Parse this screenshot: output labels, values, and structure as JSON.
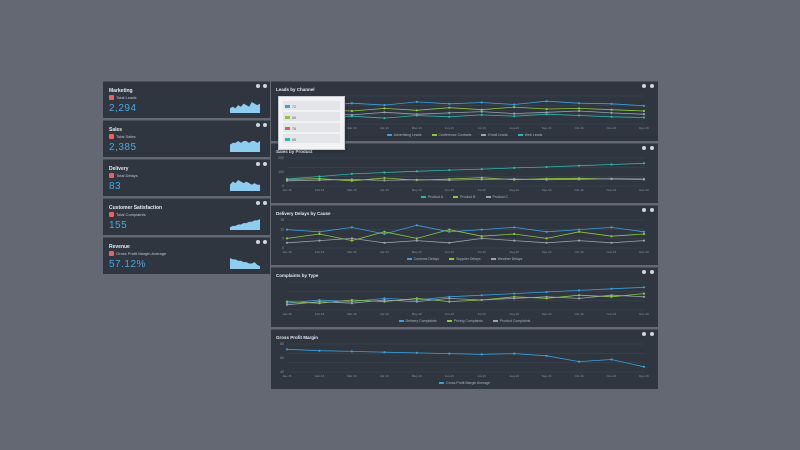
{
  "kpis": [
    {
      "title": "Marketing",
      "subtitle": "Total Leads",
      "value": "2,294",
      "spark": [
        3,
        4,
        3,
        5,
        4,
        6,
        5,
        4,
        7,
        6,
        5,
        6
      ]
    },
    {
      "title": "Sales",
      "subtitle": "Total Sales",
      "value": "2,385",
      "spark": [
        4,
        5,
        5,
        6,
        5,
        6,
        6,
        5,
        6,
        6,
        5,
        6
      ]
    },
    {
      "title": "Delivery",
      "subtitle": "Total Delays",
      "value": "83",
      "spark": [
        4,
        6,
        5,
        7,
        6,
        5,
        6,
        5,
        4,
        5,
        4,
        4
      ]
    },
    {
      "title": "Customer Satisfaction",
      "subtitle": "Total Complaints",
      "value": "155",
      "spark": [
        2,
        3,
        3,
        4,
        4,
        5,
        5,
        6,
        6,
        7,
        7,
        8
      ]
    },
    {
      "title": "Revenue",
      "subtitle": "Gross Profit Margin Average",
      "value": "57.12%",
      "spark": [
        8,
        7,
        7,
        6,
        6,
        5,
        5,
        4,
        4,
        5,
        3,
        2
      ]
    }
  ],
  "colors": {
    "blue": "#3aa0dc",
    "green": "#8fc63f",
    "gray": "#9aa3ae",
    "teal": "#2fb6b0"
  },
  "popup": {
    "rows": [
      {
        "value": "72",
        "color": "#3aa0dc"
      },
      {
        "value": "69",
        "color": "#8fc63f"
      },
      {
        "value": "78",
        "color": "#cc6666"
      },
      {
        "value": "65",
        "color": "#2fb6b0"
      }
    ]
  },
  "charts": [
    {
      "title": "Leads by Channel",
      "legend": [
        "Advertising Leads",
        "Conference Contacts",
        "Email Leads",
        "Web Leads"
      ],
      "series": [
        [
          72,
          70,
          74,
          71,
          76,
          73,
          75,
          72,
          77,
          74,
          73,
          70
        ],
        [
          60,
          64,
          62,
          66,
          63,
          67,
          64,
          68,
          65,
          66,
          64,
          62
        ],
        [
          55,
          58,
          56,
          60,
          57,
          59,
          61,
          58,
          60,
          62,
          59,
          57
        ],
        [
          50,
          52,
          54,
          51,
          55,
          53,
          56,
          54,
          57,
          55,
          53,
          52
        ]
      ],
      "x": [
        "Jan-16",
        "Feb-16",
        "Mar-16",
        "Apr-16",
        "May-16",
        "Jun-16",
        "Jul-16",
        "Aug-16",
        "Sep-16",
        "Oct-16",
        "Nov-16",
        "Dec-16"
      ]
    },
    {
      "title": "Sales by Product",
      "legend": [
        "Product A",
        "Product B",
        "Product C"
      ],
      "yticks": [
        "200",
        "100",
        "0"
      ],
      "series": [
        [
          80,
          95,
          110,
          118,
          125,
          132,
          138,
          145,
          150,
          158,
          165,
          172
        ],
        [
          78,
          82,
          70,
          86,
          74,
          80,
          88,
          76,
          82,
          84,
          80,
          78
        ],
        [
          70,
          74,
          78,
          72,
          76,
          74,
          78,
          80,
          76,
          78,
          82,
          80
        ]
      ],
      "x": [
        "Jan-16",
        "Feb-16",
        "Mar-16",
        "Apr-16",
        "May-16",
        "Jun-16",
        "Jul-16",
        "Aug-16",
        "Sep-16",
        "Oct-16",
        "Nov-16",
        "Dec-16"
      ]
    },
    {
      "title": "Delivery Delays by Cause",
      "legend": [
        "Customs Delays",
        "Supplier Delays",
        "Weather Delays"
      ],
      "yticks": [
        "15",
        "10",
        "5",
        "0"
      ],
      "series": [
        [
          8,
          7,
          9,
          6,
          10,
          7,
          8,
          9,
          7,
          8,
          9,
          7
        ],
        [
          4,
          6,
          3,
          7,
          4,
          8,
          5,
          6,
          4,
          7,
          5,
          6
        ],
        [
          2,
          3,
          4,
          2,
          3,
          2,
          4,
          3,
          2,
          3,
          2,
          3
        ]
      ],
      "x": [
        "Jan-16",
        "Feb-16",
        "Mar-16",
        "Apr-16",
        "May-16",
        "Jun-16",
        "Jul-16",
        "Aug-16",
        "Sep-16",
        "Oct-16",
        "Nov-16",
        "Dec-16"
      ]
    },
    {
      "title": "Complaints by Type",
      "legend": [
        "Delivery Complaints",
        "Pricing Complaints",
        "Product Complaints"
      ],
      "series": [
        [
          4,
          6,
          5,
          7,
          6,
          8,
          9,
          10,
          11,
          12,
          13,
          14
        ],
        [
          5,
          4,
          6,
          5,
          7,
          5,
          6,
          8,
          7,
          9,
          8,
          10
        ],
        [
          3,
          5,
          4,
          6,
          5,
          7,
          6,
          7,
          8,
          7,
          9,
          8
        ]
      ],
      "x": [
        "Jan-16",
        "Feb-16",
        "Mar-16",
        "Apr-16",
        "May-16",
        "Jun-16",
        "Jul-16",
        "Aug-16",
        "Sep-16",
        "Oct-16",
        "Nov-16",
        "Dec-16"
      ]
    },
    {
      "title": "Gross Profit Margin",
      "legend": [
        "Gross Profit Margin Average"
      ],
      "yticks": [
        "80",
        "60",
        "40"
      ],
      "series": [
        [
          72,
          70,
          69,
          68,
          67,
          66,
          65,
          66,
          63,
          55,
          58,
          48
        ]
      ],
      "x": [
        "Jan-16",
        "Feb-16",
        "Mar-16",
        "Apr-16",
        "May-16",
        "Jun-16",
        "Jul-16",
        "Aug-16",
        "Sep-16",
        "Oct-16",
        "Nov-16",
        "Dec-16"
      ]
    }
  ]
}
